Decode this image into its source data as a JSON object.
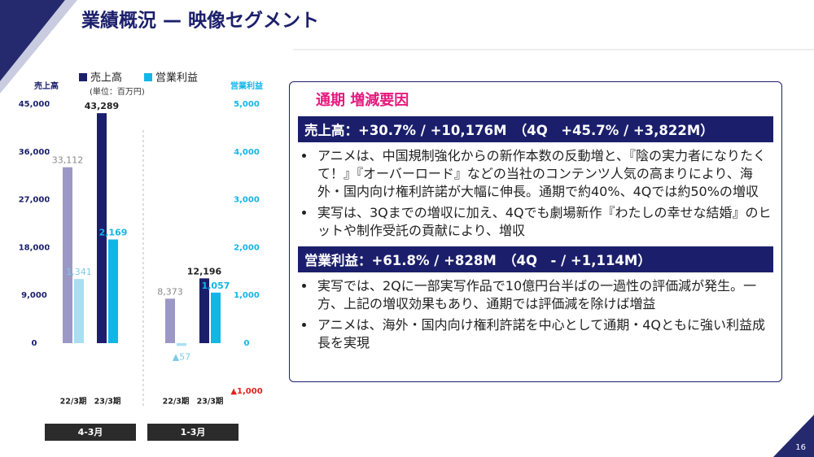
{
  "header": {
    "title": "業績概況 — 映像セグメント"
  },
  "page_number": "16",
  "chart_data": {
    "type": "bar",
    "y_label": "売上高",
    "y2_label": "営業利益",
    "unit": "(単位：百万円)",
    "categories": [
      "22/3期",
      "23/3期",
      "22/3期",
      "23/3期"
    ],
    "groups": [
      "4-3月",
      "1-3月"
    ],
    "series": [
      {
        "name": "売上高",
        "color": "#1b1f6b",
        "colors": [
          "#9c98c6",
          "#1b1f6b",
          "#9c98c6",
          "#1b1f6b"
        ],
        "values": [
          33112,
          43289,
          8373,
          12196
        ],
        "value_labels": [
          "33,112",
          "43,289",
          "8,373",
          "12,196"
        ]
      },
      {
        "name": "営業利益",
        "color": "#12b5e8",
        "axis": "y2",
        "colors": [
          "#a9def3",
          "#12b5e8",
          "#a9def3",
          "#12b5e8"
        ],
        "values": [
          1341,
          2169,
          -57,
          1057
        ],
        "value_labels": [
          "1,341",
          "2,169",
          "▲57",
          "1,057"
        ]
      }
    ],
    "ylim": [
      -9000,
      45000
    ],
    "yticks": [
      0,
      {
        "value": 9000,
        "label": "9,000"
      },
      {
        "value": 18000,
        "label": "18,000"
      },
      {
        "value": 27000,
        "label": "27,000"
      },
      {
        "value": 36000,
        "label": "36,000"
      },
      {
        "value": 45000,
        "label": "45,000"
      }
    ],
    "y2lim": [
      -1000,
      5000
    ],
    "y2ticks": [
      {
        "value": -1000,
        "label": "▲1,000"
      },
      0,
      {
        "value": 1000,
        "label": "1,000"
      },
      {
        "value": 2000,
        "label": "2,000"
      },
      {
        "value": 3000,
        "label": "3,000"
      },
      {
        "value": 4000,
        "label": "4,000"
      },
      {
        "value": 5000,
        "label": "5,000"
      }
    ]
  },
  "panel": {
    "title": "通期 増減要因",
    "sections": [
      {
        "heading": "売上高：+30.7% / +10,176M　（4Q　+45.7% / +3,822M）",
        "bullets": [
          "アニメは、中国規制強化からの新作本数の反動増と、『陰の実力者になりたくて！』『オーバーロード』などの当社のコンテンツ人気の高まりにより、海外・国内向け権利許諾が大幅に伸長。通期で約40%、4Qでは約50%の増収",
          "実写は、3Qまでの増収に加え、4Qでも劇場新作『わたしの幸せな結婚』のヒットや制作受託の貢献により、増収"
        ]
      },
      {
        "heading": "営業利益：+61.8% / +828M　（4Q　- / +1,114M）",
        "bullets": [
          "実写では、2Qに一部実写作品で10億円台半ばの一過性の評価減が発生。一方、上記の増収効果もあり、通期では評価減を除けば増益",
          "アニメは、海外・国内向け権利許諾を中心として通期・4Qともに強い利益成長を実現"
        ]
      }
    ]
  }
}
